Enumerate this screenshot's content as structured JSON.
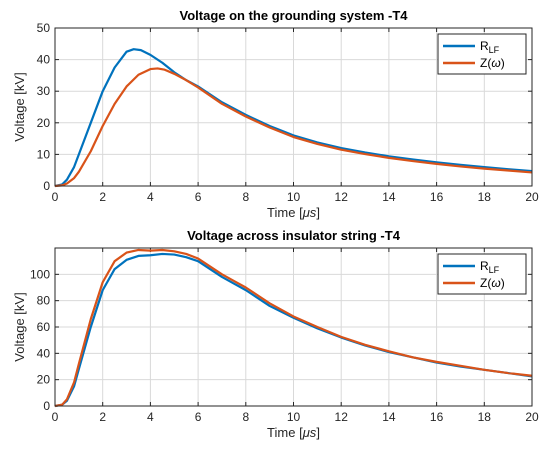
{
  "chart_data": [
    {
      "type": "line",
      "title": "Voltage on the grounding system -T4",
      "xlabel_main": "Time [",
      "xlabel_unit": "μs",
      "xlabel_end": "]",
      "ylabel": "Voltage [kV]",
      "xlim": [
        0,
        20
      ],
      "ylim": [
        0,
        50
      ],
      "xticks": [
        0,
        2,
        4,
        6,
        8,
        10,
        12,
        14,
        16,
        18,
        20
      ],
      "yticks": [
        0,
        10,
        20,
        30,
        40,
        50
      ],
      "grid": true,
      "legend_position": "top-right",
      "series": [
        {
          "name_main": "R",
          "name_sub": "LF",
          "color": "#0072BD",
          "x": [
            0,
            0.3,
            0.5,
            0.8,
            1.0,
            1.5,
            2.0,
            2.5,
            3.0,
            3.3,
            3.6,
            4.0,
            4.5,
            5.0,
            5.5,
            6.0,
            7.0,
            8.0,
            9.0,
            10.0,
            11.0,
            12.0,
            13.0,
            14.0,
            15.0,
            16.0,
            17.0,
            18.0,
            19.0,
            20.0
          ],
          "y": [
            0,
            0.5,
            2,
            6,
            10,
            20,
            30,
            37.5,
            42.5,
            43.3,
            43,
            41.5,
            39,
            36,
            33.5,
            31.5,
            26.5,
            22.5,
            19,
            16,
            13.8,
            12,
            10.6,
            9.4,
            8.4,
            7.5,
            6.7,
            6,
            5.3,
            4.7
          ]
        },
        {
          "name_main": "Z(",
          "name_sub": "ω",
          "name_end": ")",
          "color": "#D95319",
          "x": [
            0,
            0.3,
            0.5,
            0.8,
            1.0,
            1.5,
            2.0,
            2.5,
            3.0,
            3.5,
            4.0,
            4.3,
            4.6,
            5.0,
            5.5,
            6.0,
            7.0,
            8.0,
            9.0,
            10.0,
            11.0,
            12.0,
            13.0,
            14.0,
            15.0,
            16.0,
            17.0,
            18.0,
            19.0,
            20.0
          ],
          "y": [
            0,
            0.2,
            0.8,
            2.5,
            4.5,
            11,
            19,
            26,
            31.5,
            35.2,
            37,
            37.2,
            36.8,
            35.5,
            33.5,
            31.2,
            26,
            22,
            18.5,
            15.5,
            13.3,
            11.5,
            10.1,
            8.9,
            7.9,
            7,
            6.2,
            5.5,
            4.9,
            4.3
          ]
        }
      ]
    },
    {
      "type": "line",
      "title": "Voltage across insulator string -T4",
      "xlabel_main": "Time [",
      "xlabel_unit": "μs",
      "xlabel_end": "]",
      "ylabel": "Voltage [kV]",
      "xlim": [
        0,
        20
      ],
      "ylim": [
        0,
        120
      ],
      "xticks": [
        0,
        2,
        4,
        6,
        8,
        10,
        12,
        14,
        16,
        18,
        20
      ],
      "yticks": [
        0,
        20,
        40,
        60,
        80,
        100
      ],
      "grid": true,
      "legend_position": "top-right",
      "series": [
        {
          "name_main": "R",
          "name_sub": "LF",
          "color": "#0072BD",
          "x": [
            0,
            0.3,
            0.5,
            0.8,
            1.0,
            1.5,
            2.0,
            2.5,
            3.0,
            3.5,
            4.0,
            4.5,
            5.0,
            5.5,
            6.0,
            6.5,
            7.0,
            7.5,
            8.0,
            9.0,
            10.0,
            11.0,
            12.0,
            13.0,
            14.0,
            15.0,
            16.0,
            17.0,
            18.0,
            19.0,
            20.0
          ],
          "y": [
            0,
            1,
            4,
            15,
            28,
            60,
            88,
            104,
            111,
            114,
            114.5,
            115.5,
            115,
            113,
            110,
            104,
            98,
            93,
            88,
            76,
            67,
            59,
            52,
            46,
            41,
            37,
            33,
            30,
            27.5,
            25,
            22.5
          ]
        },
        {
          "name_main": "Z(",
          "name_sub": "ω",
          "name_end": ")",
          "color": "#D95319",
          "x": [
            0,
            0.3,
            0.5,
            0.8,
            1.0,
            1.5,
            2.0,
            2.5,
            3.0,
            3.5,
            4.0,
            4.5,
            5.0,
            5.5,
            6.0,
            6.5,
            7.0,
            7.5,
            8.0,
            9.0,
            10.0,
            11.0,
            12.0,
            13.0,
            14.0,
            15.0,
            16.0,
            17.0,
            18.0,
            19.0,
            20.0
          ],
          "y": [
            0,
            1,
            5,
            18,
            32,
            66,
            94,
            110,
            116.5,
            118.5,
            118,
            118.5,
            117.5,
            115.5,
            112,
            106,
            100,
            95,
            90,
            78,
            68,
            60,
            52.5,
            46.5,
            41.5,
            37,
            33.5,
            30.5,
            27.5,
            25,
            23
          ]
        }
      ]
    }
  ]
}
